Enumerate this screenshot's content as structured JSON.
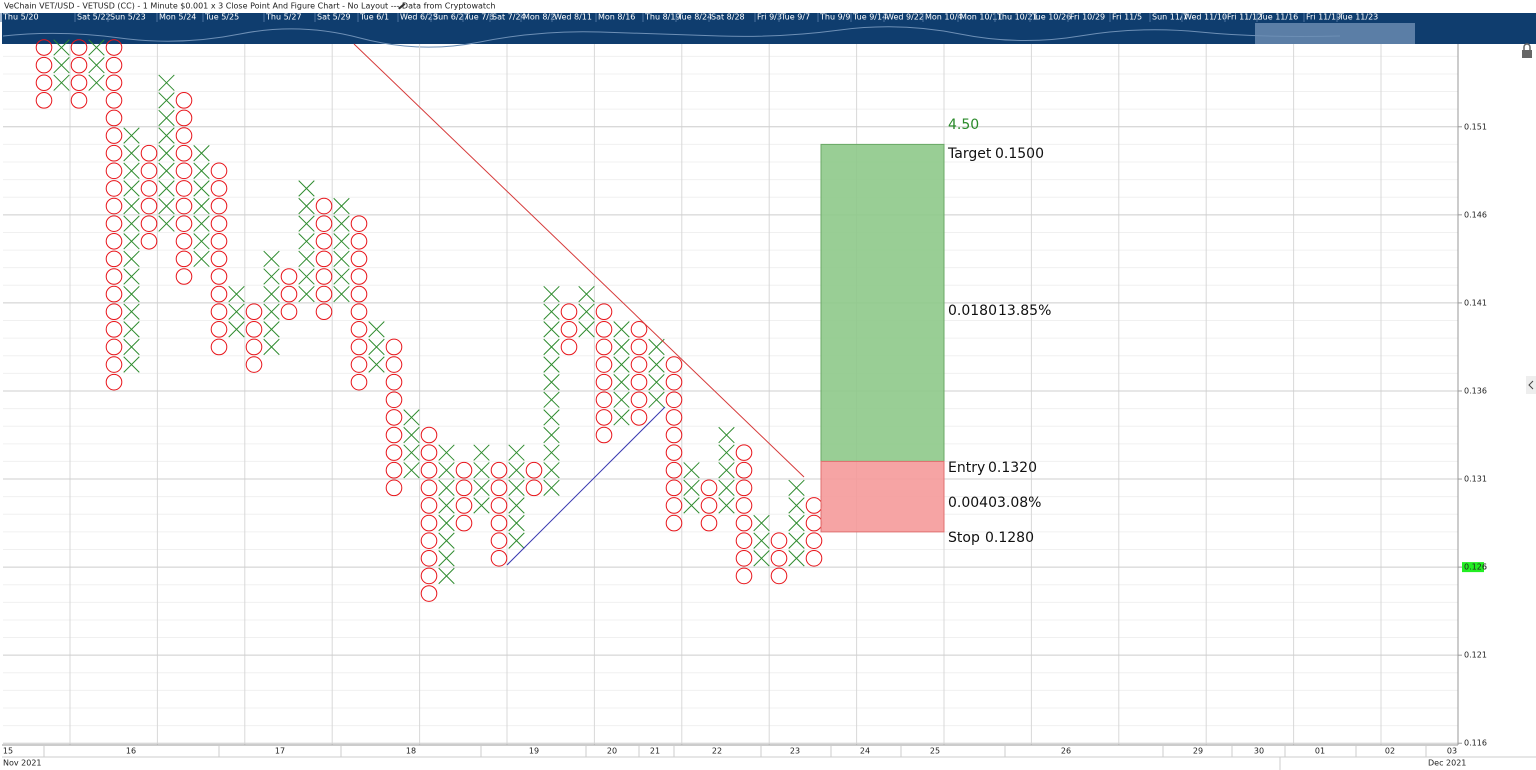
{
  "chart_data": {
    "type": "point-and-figure",
    "title": "VeChain VET/USD - VETUSD (CC) - 1 Minute $0.001 x 3 Close Point And Figure Chart - No Layout --- Data from Cryptowatch",
    "box_size": 0.001,
    "x_color": "#2e8b2e",
    "o_color": "#e8141a",
    "columns": [
      {
        "type": "O",
        "low": 0.152,
        "high": 0.156
      },
      {
        "type": "X",
        "low": 0.153,
        "high": 0.156
      },
      {
        "type": "O",
        "low": 0.152,
        "high": 0.156
      },
      {
        "type": "X",
        "low": 0.153,
        "high": 0.156
      },
      {
        "type": "O",
        "low": 0.136,
        "high": 0.156
      },
      {
        "type": "X",
        "low": 0.137,
        "high": 0.151
      },
      {
        "type": "O",
        "low": 0.144,
        "high": 0.15
      },
      {
        "type": "X",
        "low": 0.145,
        "high": 0.154
      },
      {
        "type": "O",
        "low": 0.142,
        "high": 0.153
      },
      {
        "type": "X",
        "low": 0.143,
        "high": 0.15
      },
      {
        "type": "O",
        "low": 0.138,
        "high": 0.149
      },
      {
        "type": "X",
        "low": 0.139,
        "high": 0.142
      },
      {
        "type": "O",
        "low": 0.137,
        "high": 0.141
      },
      {
        "type": "X",
        "low": 0.138,
        "high": 0.144
      },
      {
        "type": "O",
        "low": 0.14,
        "high": 0.143
      },
      {
        "type": "X",
        "low": 0.141,
        "high": 0.148
      },
      {
        "type": "O",
        "low": 0.14,
        "high": 0.147
      },
      {
        "type": "X",
        "low": 0.141,
        "high": 0.147
      },
      {
        "type": "O",
        "low": 0.136,
        "high": 0.146
      },
      {
        "type": "X",
        "low": 0.137,
        "high": 0.14
      },
      {
        "type": "O",
        "low": 0.13,
        "high": 0.139
      },
      {
        "type": "X",
        "low": 0.131,
        "high": 0.135
      },
      {
        "type": "O",
        "low": 0.124,
        "high": 0.134
      },
      {
        "type": "X",
        "low": 0.125,
        "high": 0.133
      },
      {
        "type": "O",
        "low": 0.128,
        "high": 0.132
      },
      {
        "type": "X",
        "low": 0.129,
        "high": 0.133
      },
      {
        "type": "O",
        "low": 0.126,
        "high": 0.132
      },
      {
        "type": "X",
        "low": 0.127,
        "high": 0.133
      },
      {
        "type": "O",
        "low": 0.13,
        "high": 0.132
      },
      {
        "type": "X",
        "low": 0.13,
        "high": 0.142
      },
      {
        "type": "O",
        "low": 0.138,
        "high": 0.141
      },
      {
        "type": "X",
        "low": 0.139,
        "high": 0.142
      },
      {
        "type": "O",
        "low": 0.133,
        "high": 0.141
      },
      {
        "type": "X",
        "low": 0.134,
        "high": 0.14
      },
      {
        "type": "O",
        "low": 0.134,
        "high": 0.14
      },
      {
        "type": "X",
        "low": 0.135,
        "high": 0.139
      },
      {
        "type": "O",
        "low": 0.128,
        "high": 0.138
      },
      {
        "type": "X",
        "low": 0.129,
        "high": 0.132
      },
      {
        "type": "O",
        "low": 0.128,
        "high": 0.131
      },
      {
        "type": "X",
        "low": 0.129,
        "high": 0.134
      },
      {
        "type": "O",
        "low": 0.125,
        "high": 0.133
      },
      {
        "type": "X",
        "low": 0.126,
        "high": 0.129
      },
      {
        "type": "O",
        "low": 0.125,
        "high": 0.128
      },
      {
        "type": "X",
        "low": 0.126,
        "high": 0.131
      },
      {
        "type": "O",
        "low": 0.126,
        "high": 0.13
      }
    ],
    "ylim": [
      0.1159,
      0.1557
    ],
    "yticks": [
      0.116,
      0.121,
      0.126,
      0.131,
      0.136,
      0.141,
      0.146,
      0.151
    ],
    "grid": true,
    "last_price": 0.126,
    "last_price_color": "#22ee22",
    "position": {
      "ratio": 4.5,
      "ratio_label": "4.50",
      "target": {
        "name": "Target",
        "value": 0.15,
        "value_label": "0.1500"
      },
      "entry": {
        "name": "Entry",
        "value": 0.132,
        "value_label": "0.1320"
      },
      "stop": {
        "name": "Stop",
        "value": 0.128,
        "value_label": "0.1280"
      },
      "reward": {
        "value": 0.018,
        "value_label": "0.0180",
        "percent": "13.85%",
        "color": "#8ec98a"
      },
      "risk": {
        "value": 0.004,
        "value_label": "0.0040",
        "percent": "3.08%",
        "color": "#f59a9a"
      }
    },
    "x_axis": {
      "labels": [
        "15",
        "16",
        "17",
        "18",
        "19",
        "20",
        "21",
        "22",
        "23",
        "24",
        "25",
        "26",
        "29",
        "30",
        "01",
        "02",
        "03"
      ],
      "months": [
        "Nov 2021",
        "Dec 2021"
      ]
    },
    "navigator": {
      "labels": [
        "Thu 5/20",
        "Sat 5/22",
        "Sun 5/23",
        "Mon 5/24",
        "Tue 5/25",
        "Thu 5/27",
        "Sat 5/29",
        "Tue 6/1",
        "Wed 6/23",
        "Sun 6/27",
        "Tue 7/6",
        "Sat 7/24",
        "Mon 8/2",
        "Wed 8/11",
        "Mon 8/16",
        "Thu 8/19",
        "Tue 8/24",
        "Sat 8/28",
        "Fri 9/3",
        "Tue 9/7",
        "Thu 9/9",
        "Tue 9/14",
        "Wed 9/22",
        "Mon 10/4",
        "Mon 10/11",
        "Thu 10/21",
        "Tue 10/26",
        "Fri 10/29",
        "Fri 11/5",
        "Sun 11/7",
        "Wed 11/10",
        "Fri 11/12",
        "Tue 11/16",
        "Fri 11/19",
        "Tue 11/23"
      ]
    }
  }
}
